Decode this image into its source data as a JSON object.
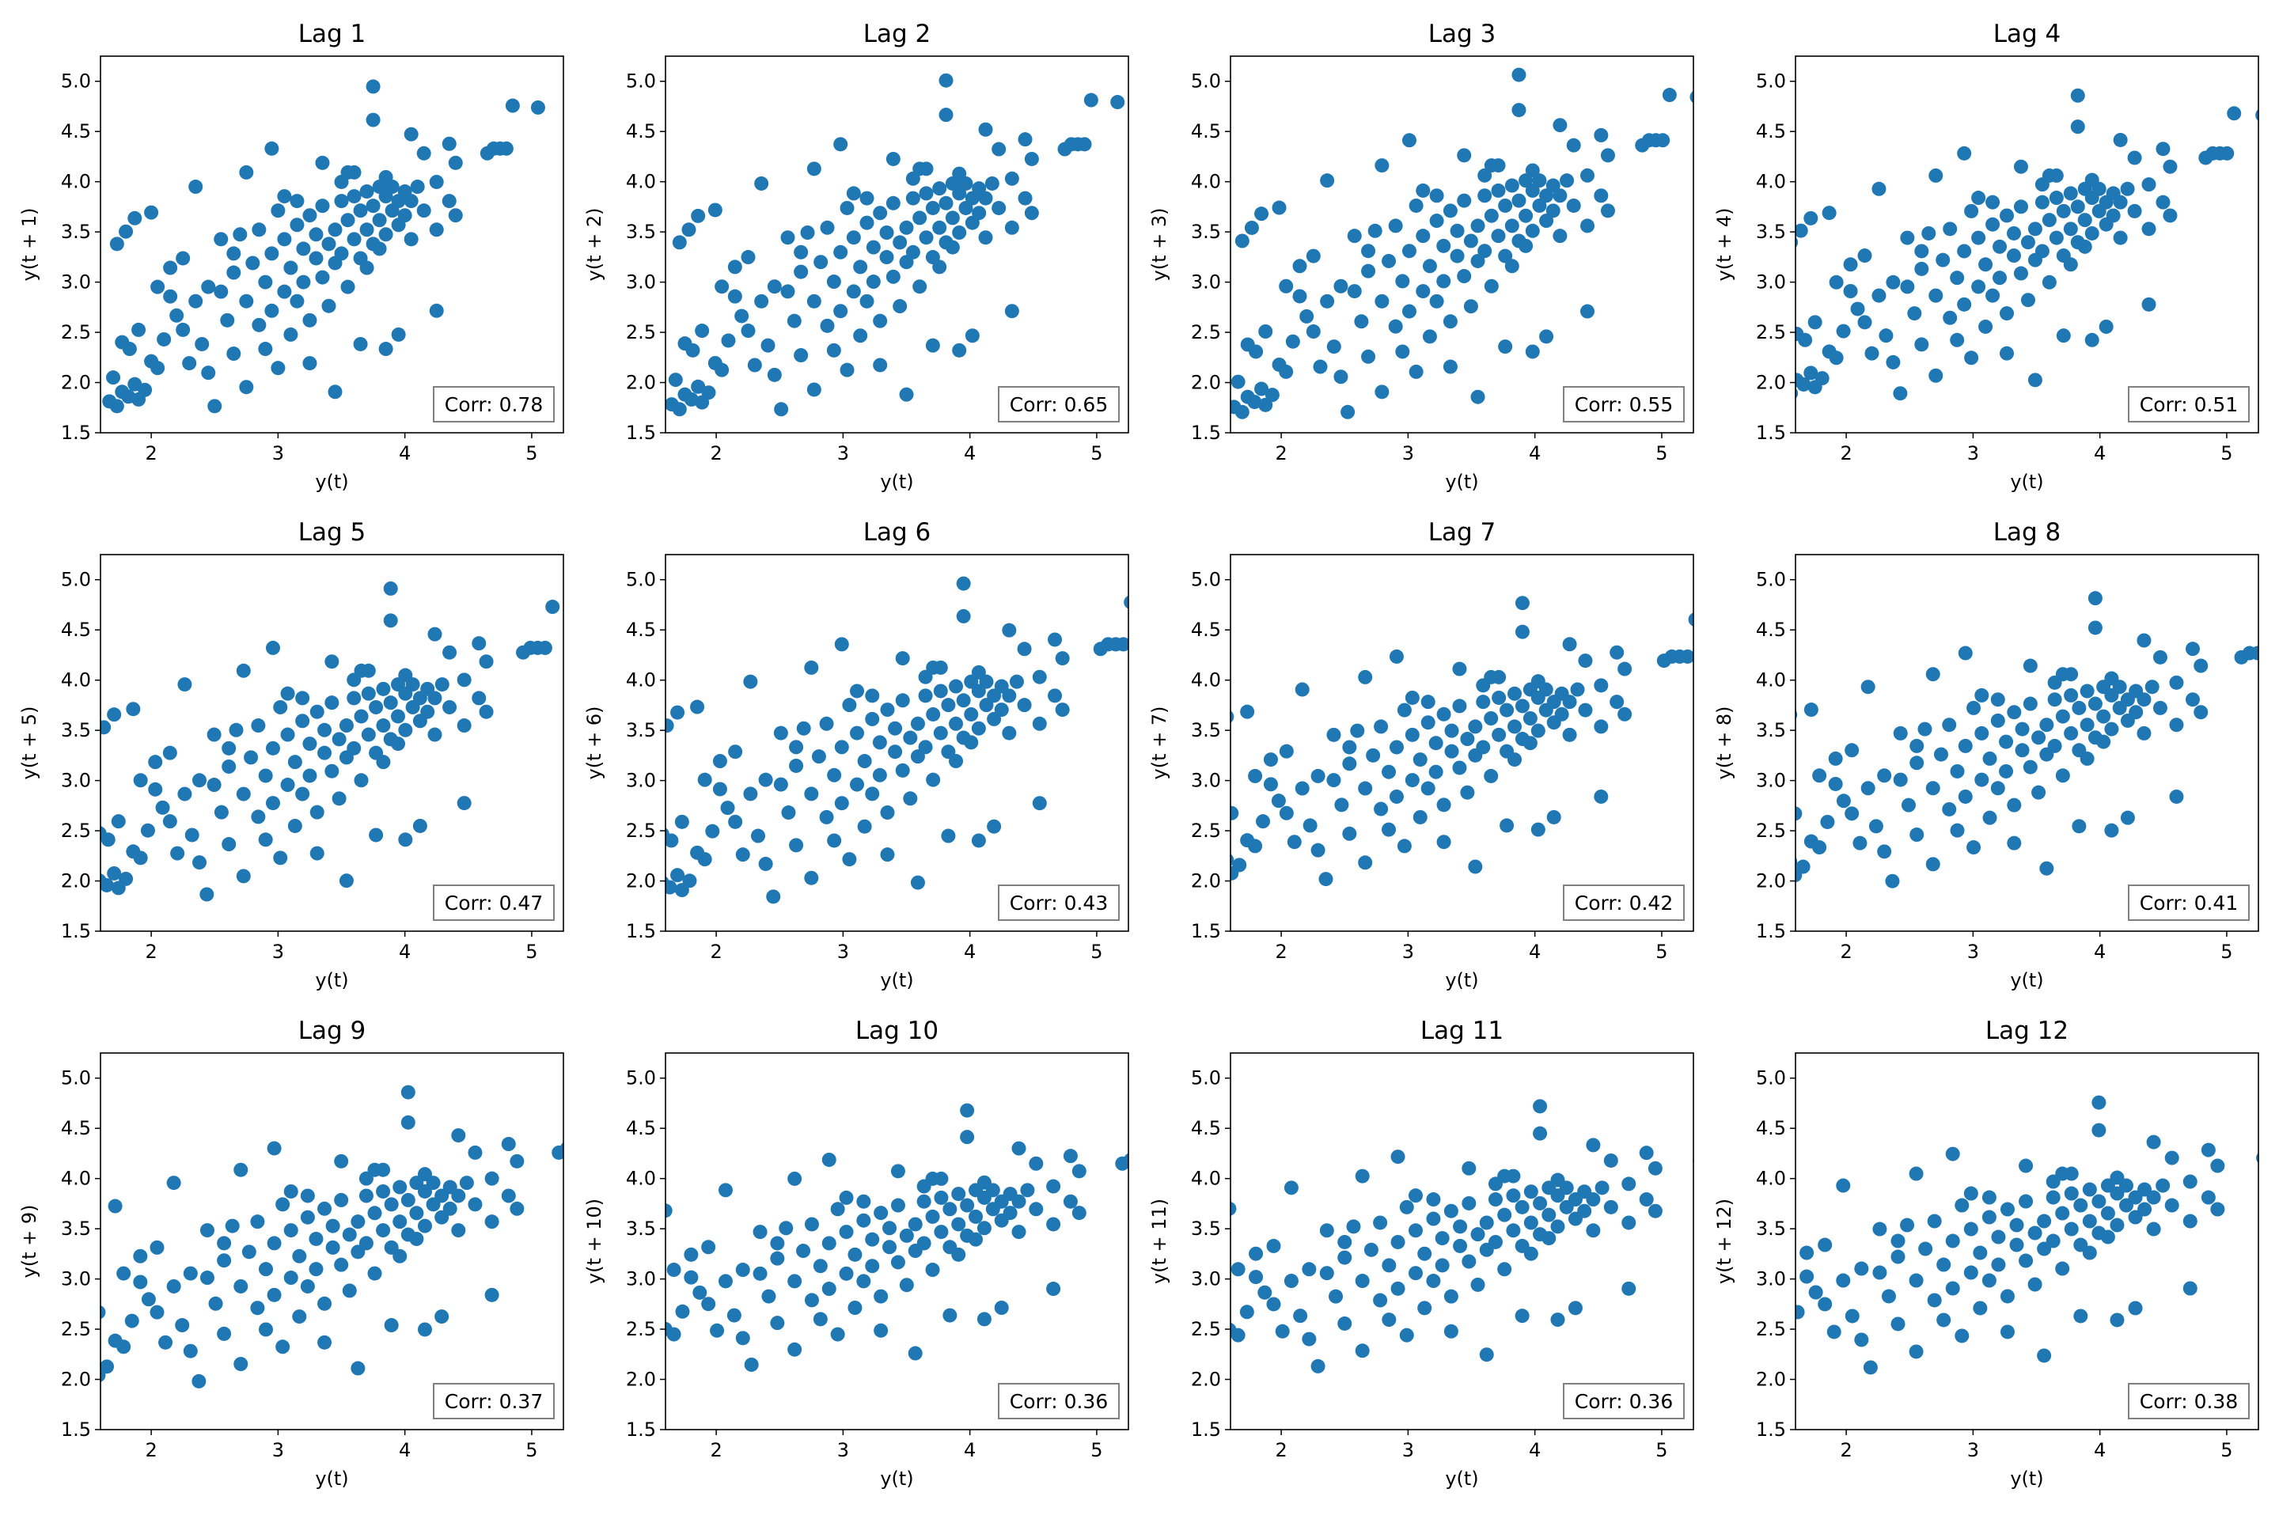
{
  "chart_data": {
    "type": "scatter",
    "series_color": "#1f77b4",
    "xlabel": "y(t)",
    "x_ticks": [
      2,
      3,
      4,
      5
    ],
    "y_ticks": [
      1.5,
      2.0,
      2.5,
      3.0,
      3.5,
      4.0,
      4.5,
      5.0
    ],
    "y_tick_labels": [
      "1.5",
      "2.0",
      "2.5",
      "3.0",
      "3.5",
      "4.0",
      "4.5",
      "5.0"
    ],
    "xlim": [
      1.6,
      5.25
    ],
    "ylim": [
      1.5,
      5.25
    ],
    "grid": false,
    "panels": [
      {
        "title": "Lag 1",
        "ylabel": "y(t + 1)",
        "corr_text": "Corr: 0.78",
        "corr": 0.78
      },
      {
        "title": "Lag 2",
        "ylabel": "y(t + 2)",
        "corr_text": "Corr: 0.65",
        "corr": 0.65
      },
      {
        "title": "Lag 3",
        "ylabel": "y(t + 3)",
        "corr_text": "Corr: 0.55",
        "corr": 0.55
      },
      {
        "title": "Lag 4",
        "ylabel": "y(t + 4)",
        "corr_text": "Corr: 0.51",
        "corr": 0.51
      },
      {
        "title": "Lag 5",
        "ylabel": "y(t + 5)",
        "corr_text": "Corr: 0.47",
        "corr": 0.47
      },
      {
        "title": "Lag 6",
        "ylabel": "y(t + 6)",
        "corr_text": "Corr: 0.43",
        "corr": 0.43
      },
      {
        "title": "Lag 7",
        "ylabel": "y(t + 7)",
        "corr_text": "Corr: 0.42",
        "corr": 0.42
      },
      {
        "title": "Lag 8",
        "ylabel": "y(t + 8)",
        "corr_text": "Corr: 0.41",
        "corr": 0.41
      },
      {
        "title": "Lag 9",
        "ylabel": "y(t + 9)",
        "corr_text": "Corr: 0.37",
        "corr": 0.37
      },
      {
        "title": "Lag 10",
        "ylabel": "y(t + 10)",
        "corr_text": "Corr: 0.36",
        "corr": 0.36
      },
      {
        "title": "Lag 11",
        "ylabel": "y(t + 11)",
        "corr_text": "Corr: 0.36",
        "corr": 0.36
      },
      {
        "title": "Lag 12",
        "ylabel": "y(t + 12)",
        "corr_text": "Corr: 0.38",
        "corr": 0.38
      }
    ],
    "points": [
      [
        1.72,
        1.8
      ],
      [
        1.78,
        1.75
      ],
      [
        1.82,
        1.9
      ],
      [
        1.87,
        1.85
      ],
      [
        1.92,
        1.98
      ],
      [
        1.95,
        1.82
      ],
      [
        2.0,
        1.92
      ],
      [
        1.75,
        2.05
      ],
      [
        1.88,
        2.35
      ],
      [
        1.95,
        2.55
      ],
      [
        2.05,
        2.22
      ],
      [
        2.1,
        2.15
      ],
      [
        2.15,
        2.45
      ],
      [
        1.82,
        2.42
      ],
      [
        1.78,
        3.45
      ],
      [
        1.85,
        3.58
      ],
      [
        1.92,
        3.72
      ],
      [
        2.05,
        3.78
      ],
      [
        2.1,
        3.0
      ],
      [
        2.2,
        3.2
      ],
      [
        2.3,
        3.3
      ],
      [
        2.4,
        4.05
      ],
      [
        2.2,
        2.9
      ],
      [
        2.25,
        2.7
      ],
      [
        2.3,
        2.55
      ],
      [
        2.35,
        2.2
      ],
      [
        2.45,
        2.4
      ],
      [
        2.5,
        3.0
      ],
      [
        2.5,
        2.1
      ],
      [
        2.55,
        1.75
      ],
      [
        2.6,
        3.5
      ],
      [
        2.65,
        2.65
      ],
      [
        2.7,
        2.3
      ],
      [
        2.7,
        3.15
      ],
      [
        2.75,
        3.55
      ],
      [
        2.8,
        2.85
      ],
      [
        2.8,
        1.95
      ],
      [
        2.85,
        3.25
      ],
      [
        2.9,
        2.6
      ],
      [
        2.9,
        3.6
      ],
      [
        2.95,
        3.05
      ],
      [
        2.95,
        2.35
      ],
      [
        3.0,
        2.75
      ],
      [
        3.0,
        3.35
      ],
      [
        3.0,
        4.45
      ],
      [
        3.05,
        3.8
      ],
      [
        3.05,
        2.15
      ],
      [
        3.1,
        2.95
      ],
      [
        3.1,
        3.5
      ],
      [
        3.15,
        3.2
      ],
      [
        3.15,
        2.5
      ],
      [
        3.2,
        3.65
      ],
      [
        3.2,
        2.85
      ],
      [
        3.25,
        3.4
      ],
      [
        3.25,
        3.05
      ],
      [
        3.3,
        3.75
      ],
      [
        3.3,
        2.65
      ],
      [
        3.35,
        3.3
      ],
      [
        3.35,
        3.55
      ],
      [
        3.4,
        3.1
      ],
      [
        3.4,
        3.85
      ],
      [
        3.45,
        3.45
      ],
      [
        3.45,
        2.8
      ],
      [
        3.5,
        3.6
      ],
      [
        3.5,
        3.25
      ],
      [
        3.55,
        3.9
      ],
      [
        3.55,
        3.35
      ],
      [
        3.6,
        3.7
      ],
      [
        3.6,
        3.0
      ],
      [
        3.65,
        3.5
      ],
      [
        3.65,
        3.95
      ],
      [
        3.7,
        3.8
      ],
      [
        3.7,
        3.3
      ],
      [
        3.75,
        3.6
      ],
      [
        3.75,
        4.0
      ],
      [
        3.8,
        3.85
      ],
      [
        3.8,
        3.45
      ],
      [
        3.85,
        3.7
      ],
      [
        3.85,
        4.05
      ],
      [
        3.9,
        3.95
      ],
      [
        3.9,
        3.55
      ],
      [
        3.95,
        3.8
      ],
      [
        3.95,
        4.05
      ],
      [
        4.0,
        3.9
      ],
      [
        4.0,
        3.65
      ],
      [
        4.05,
        4.0
      ],
      [
        4.05,
        3.75
      ],
      [
        4.1,
        3.9
      ],
      [
        4.1,
        3.5
      ],
      [
        4.15,
        4.05
      ],
      [
        4.2,
        3.8
      ],
      [
        4.2,
        4.4
      ],
      [
        4.3,
        4.1
      ],
      [
        4.3,
        3.6
      ],
      [
        4.4,
        4.5
      ],
      [
        4.4,
        3.9
      ],
      [
        4.45,
        4.3
      ],
      [
        4.45,
        3.75
      ],
      [
        4.3,
        2.75
      ],
      [
        4.1,
        4.6
      ],
      [
        3.8,
        4.75
      ],
      [
        3.8,
        5.1
      ],
      [
        3.7,
        2.4
      ],
      [
        3.5,
        1.9
      ],
      [
        3.3,
        2.2
      ],
      [
        3.4,
        4.3
      ],
      [
        3.6,
        4.2
      ],
      [
        4.8,
        4.45
      ],
      [
        4.85,
        4.45
      ],
      [
        4.9,
        4.9
      ],
      [
        5.1,
        4.88
      ],
      [
        4.7,
        4.4
      ],
      [
        4.75,
        4.45
      ],
      [
        3.9,
        2.35
      ],
      [
        4.0,
        2.5
      ],
      [
        2.8,
        4.2
      ],
      [
        3.1,
        3.95
      ],
      [
        2.4,
        2.85
      ],
      [
        2.6,
        2.95
      ],
      [
        2.7,
        3.35
      ],
      [
        3.2,
        3.9
      ],
      [
        3.55,
        4.1
      ],
      [
        3.65,
        4.2
      ],
      [
        3.9,
        4.15
      ],
      [
        3.75,
        3.2
      ],
      [
        3.85,
        3.4
      ]
    ]
  }
}
